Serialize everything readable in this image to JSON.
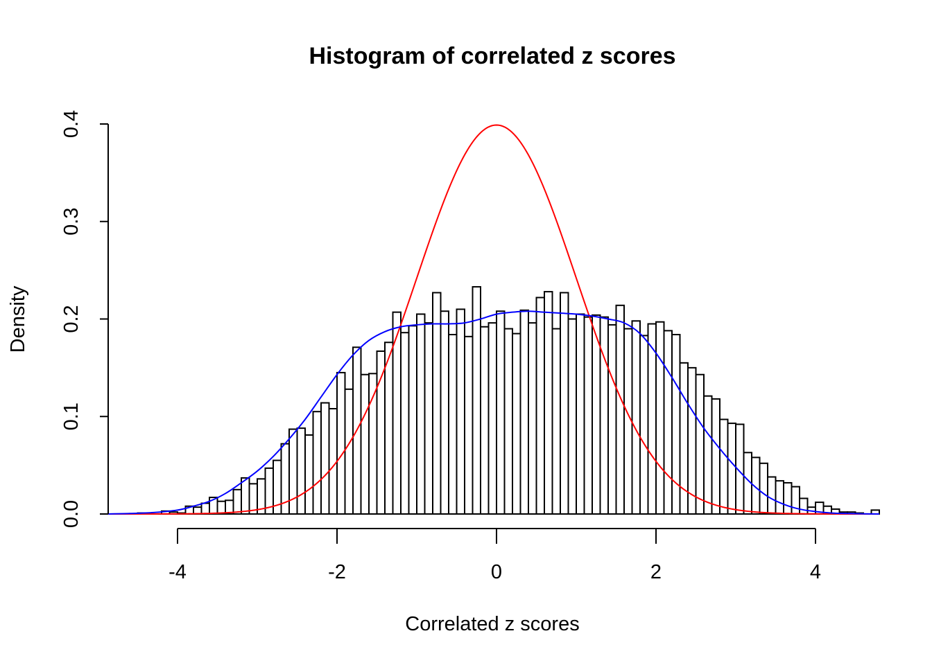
{
  "chart_data": {
    "type": "histogram",
    "title": "Histogram of correlated z scores",
    "xlabel": "Correlated z scores",
    "ylabel": "Density",
    "xlim": [
      -4.9,
      4.8
    ],
    "ylim": [
      0,
      0.4
    ],
    "x_ticks": [
      -4,
      -2,
      0,
      2,
      4
    ],
    "x_tick_labels": [
      "-4",
      "-2",
      "0",
      "2",
      "4"
    ],
    "y_ticks": [
      0.0,
      0.1,
      0.2,
      0.3,
      0.4
    ],
    "y_tick_labels": [
      "0.0",
      "0.1",
      "0.2",
      "0.3",
      "0.4"
    ],
    "bin_width": 0.1,
    "bin_start": -4.5,
    "bar_color": "#ffffff",
    "bar_edge_color": "#000000",
    "densities": [
      0.001,
      0.0,
      0.0,
      0.003,
      0.002,
      0.001,
      0.008,
      0.007,
      0.011,
      0.017,
      0.013,
      0.014,
      0.025,
      0.037,
      0.031,
      0.036,
      0.047,
      0.055,
      0.072,
      0.087,
      0.088,
      0.081,
      0.105,
      0.114,
      0.108,
      0.145,
      0.128,
      0.171,
      0.143,
      0.144,
      0.167,
      0.176,
      0.207,
      0.186,
      0.193,
      0.205,
      0.196,
      0.227,
      0.208,
      0.184,
      0.21,
      0.182,
      0.233,
      0.192,
      0.196,
      0.208,
      0.19,
      0.185,
      0.209,
      0.196,
      0.222,
      0.228,
      0.19,
      0.227,
      0.2,
      0.205,
      0.202,
      0.204,
      0.202,
      0.194,
      0.214,
      0.19,
      0.198,
      0.183,
      0.195,
      0.197,
      0.188,
      0.184,
      0.155,
      0.15,
      0.143,
      0.121,
      0.118,
      0.097,
      0.093,
      0.092,
      0.063,
      0.058,
      0.052,
      0.038,
      0.034,
      0.032,
      0.028,
      0.016,
      0.007,
      0.012,
      0.008,
      0.005,
      0.002,
      0.002,
      0.001,
      0.0,
      0.004
    ],
    "series": [
      {
        "type": "line",
        "color": "#ff0000",
        "function": "standard_normal_density",
        "mean": 0,
        "sd": 1
      },
      {
        "type": "line",
        "color": "#0000ff",
        "function": "kernel_density_estimate",
        "x": [
          -4.9,
          -4.6,
          -4.3,
          -4.0,
          -3.8,
          -3.6,
          -3.4,
          -3.2,
          -3.0,
          -2.8,
          -2.6,
          -2.4,
          -2.2,
          -2.0,
          -1.8,
          -1.6,
          -1.4,
          -1.2,
          -1.0,
          -0.8,
          -0.6,
          -0.4,
          -0.2,
          0.0,
          0.2,
          0.4,
          0.6,
          0.8,
          1.0,
          1.2,
          1.4,
          1.6,
          1.8,
          2.0,
          2.2,
          2.4,
          2.6,
          2.8,
          3.0,
          3.2,
          3.4,
          3.6,
          3.8,
          4.0,
          4.2,
          4.4,
          4.6,
          4.8
        ],
        "y": [
          0.0,
          0.0005,
          0.0015,
          0.004,
          0.008,
          0.013,
          0.021,
          0.032,
          0.044,
          0.059,
          0.077,
          0.097,
          0.12,
          0.143,
          0.163,
          0.178,
          0.187,
          0.192,
          0.194,
          0.195,
          0.195,
          0.196,
          0.2,
          0.205,
          0.207,
          0.208,
          0.207,
          0.206,
          0.205,
          0.203,
          0.2,
          0.196,
          0.185,
          0.165,
          0.14,
          0.113,
          0.088,
          0.067,
          0.048,
          0.031,
          0.018,
          0.01,
          0.005,
          0.0025,
          0.001,
          0.0005,
          0.0002,
          0.0
        ]
      }
    ]
  }
}
